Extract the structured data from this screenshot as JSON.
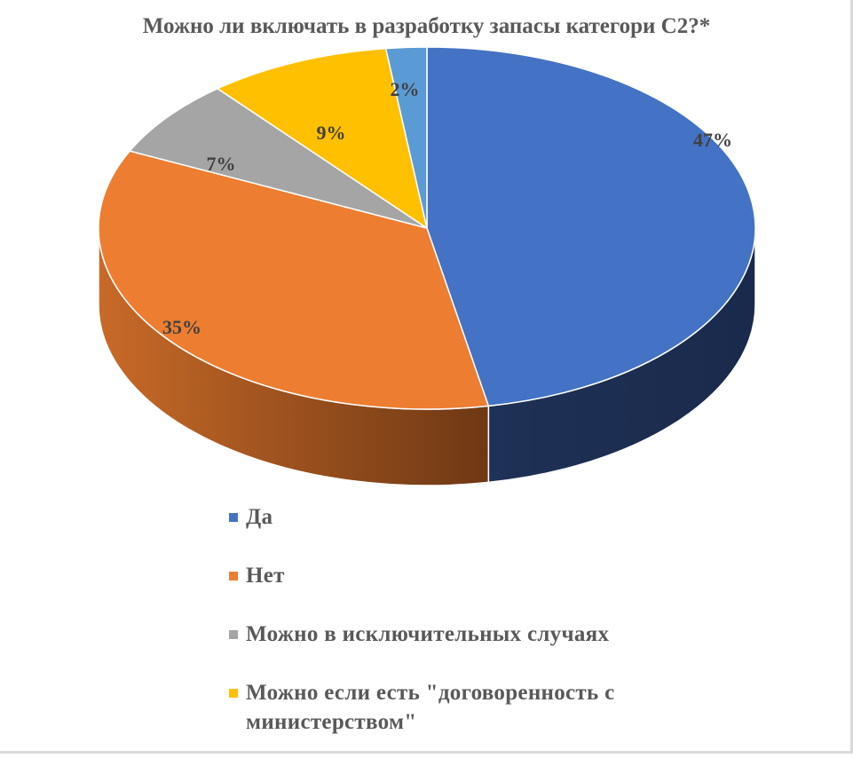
{
  "chart_data": {
    "type": "pie",
    "title": "Можно ли включать в разработку запасы категори С2?*",
    "style": "3d-pie",
    "series": [
      {
        "name": "Да",
        "value": 47,
        "label": "47%",
        "color": "#4472c4",
        "side_color": "#1c2d50"
      },
      {
        "name": "Нет",
        "value": 35,
        "label": "35%",
        "color": "#ed7d31",
        "side_color": "#a0521c"
      },
      {
        "name": "Можно в исключительных случаях",
        "value": 7,
        "label": "7%",
        "color": "#a5a5a5",
        "side_color": "#6b6b6b"
      },
      {
        "name": "Можно если есть \"договоренность с министерством\"",
        "value": 9,
        "label": "9%",
        "color": "#ffc000",
        "side_color": "#a67c00"
      },
      {
        "name": "",
        "value": 2,
        "label": "2%",
        "color": "#5b9bd5",
        "side_color": "#2e5d88"
      }
    ],
    "legend": {
      "position": "bottom",
      "entries": [
        {
          "label": "Да",
          "color": "#4472c4"
        },
        {
          "label": "Нет",
          "color": "#ed7d31"
        },
        {
          "label": "Можно в исключительных случаях",
          "color": "#a5a5a5"
        },
        {
          "label": "Можно если есть \"договоренность с министерством\"",
          "color": "#ffc000"
        }
      ]
    }
  }
}
